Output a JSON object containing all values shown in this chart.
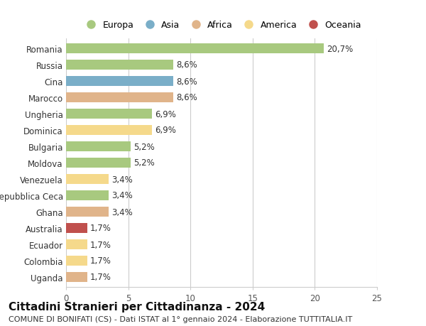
{
  "title": "Cittadini Stranieri per Cittadinanza - 2024",
  "subtitle": "COMUNE DI BONIFATI (CS) - Dati ISTAT al 1° gennaio 2024 - Elaborazione TUTTITALIA.IT",
  "categories": [
    "Romania",
    "Russia",
    "Cina",
    "Marocco",
    "Ungheria",
    "Dominica",
    "Bulgaria",
    "Moldova",
    "Venezuela",
    "Repubblica Ceca",
    "Ghana",
    "Australia",
    "Ecuador",
    "Colombia",
    "Uganda"
  ],
  "values": [
    20.7,
    8.6,
    8.6,
    8.6,
    6.9,
    6.9,
    5.2,
    5.2,
    3.4,
    3.4,
    3.4,
    1.7,
    1.7,
    1.7,
    1.7
  ],
  "labels": [
    "20,7%",
    "8,6%",
    "8,6%",
    "8,6%",
    "6,9%",
    "6,9%",
    "5,2%",
    "5,2%",
    "3,4%",
    "3,4%",
    "3,4%",
    "1,7%",
    "1,7%",
    "1,7%",
    "1,7%"
  ],
  "continents": [
    "Europa",
    "Europa",
    "Asia",
    "Africa",
    "Europa",
    "America",
    "Europa",
    "Europa",
    "America",
    "Europa",
    "Africa",
    "Oceania",
    "America",
    "America",
    "Africa"
  ],
  "continent_colors": {
    "Europa": "#a8c97f",
    "Asia": "#7aaec8",
    "Africa": "#e0b48a",
    "America": "#f5d98b",
    "Oceania": "#c0504d"
  },
  "legend_order": [
    "Europa",
    "Asia",
    "Africa",
    "America",
    "Oceania"
  ],
  "xlim": [
    0,
    25
  ],
  "xticks": [
    0,
    5,
    10,
    15,
    20,
    25
  ],
  "background_color": "#ffffff",
  "bar_height": 0.62,
  "grid_color": "#cccccc",
  "label_fontsize": 8.5,
  "tick_fontsize": 8.5,
  "title_fontsize": 11,
  "subtitle_fontsize": 8
}
